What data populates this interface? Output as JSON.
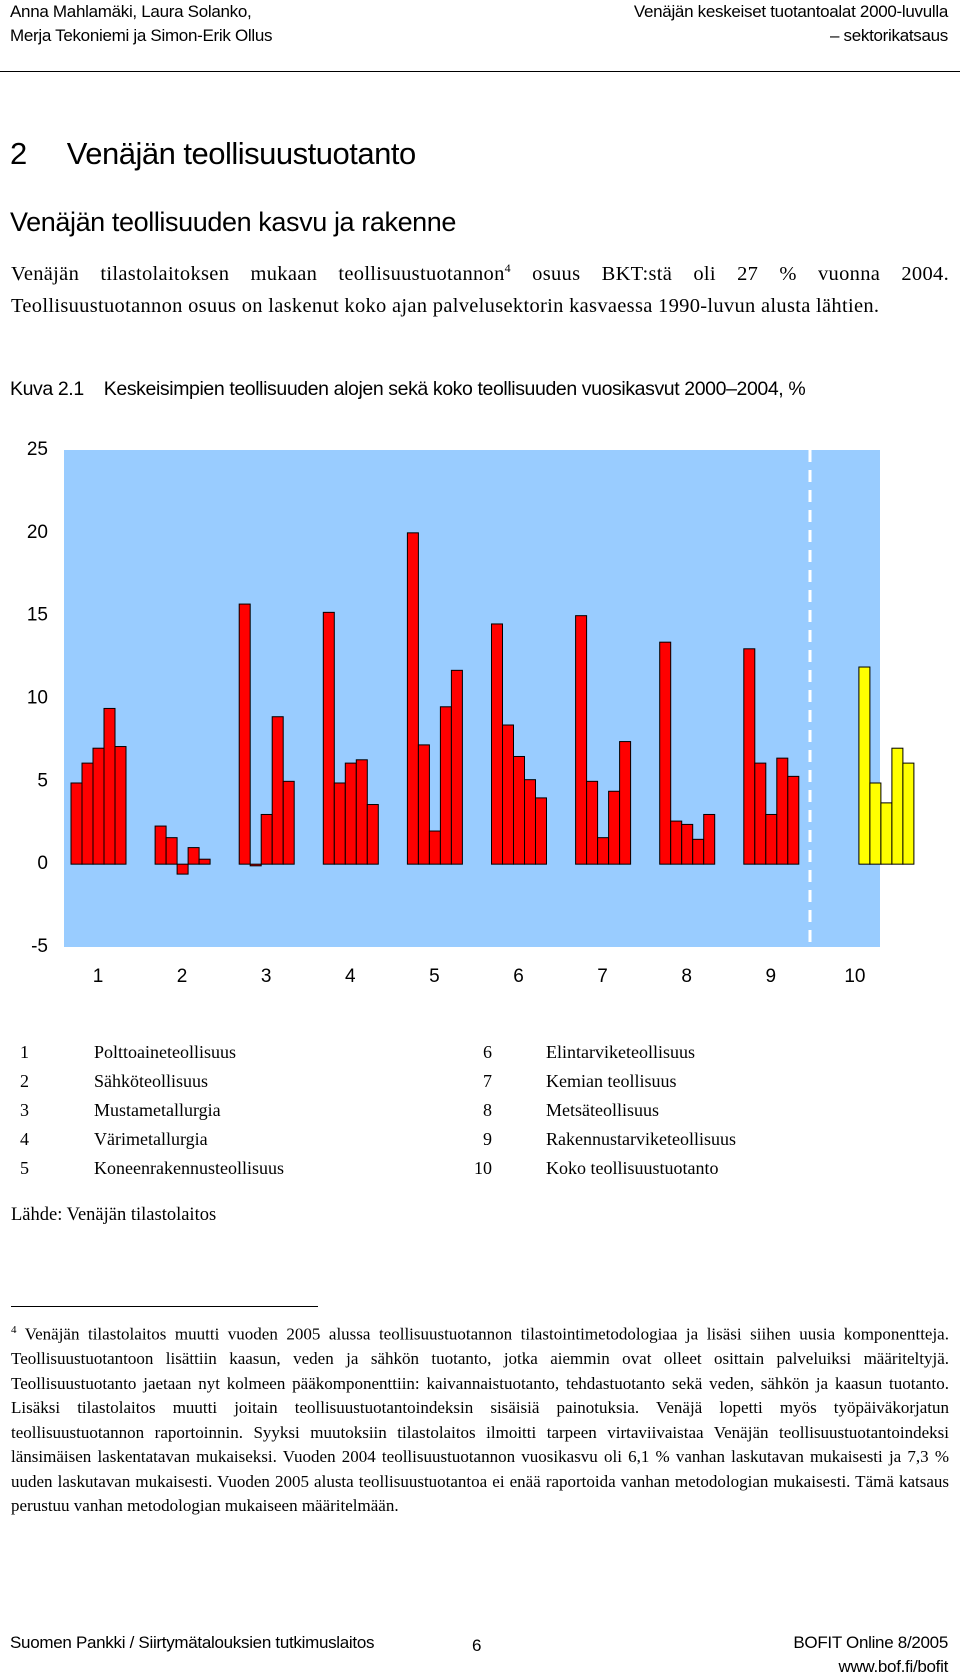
{
  "header": {
    "authors": [
      "Anna Mahlamäki, Laura Solanko,",
      "Merja Tekoniemi ja Simon-Erik Ollus"
    ],
    "title": [
      "Venäjän keskeiset tuotantoalat 2000-luvulla",
      "– sektorikatsaus"
    ]
  },
  "section_heading": {
    "number": "2",
    "title": "Venäjän teollisuustuotanto"
  },
  "subheading": "Venäjän teollisuuden kasvu ja rakenne",
  "paragraph": {
    "before": "Venäjän tilastolaitoksen mukaan teollisuustuotannon",
    "footnote_ref": "4",
    "after": " osuus BKT:stä oli 27 % vuonna 2004. Teollisuustuotannon osuus on laskenut koko ajan palvelusektorin kasvaessa 1990-luvun alusta lähtien."
  },
  "figure_label": "Kuva 2.1",
  "chart_data": {
    "type": "grouped_bar",
    "title": "Keskeisimpien teollisuuden alojen sekä koko teollisuuden vuosikasvut 2000–2004, %",
    "categories": [
      "1",
      "2",
      "3",
      "4",
      "5",
      "6",
      "7",
      "8",
      "9",
      "10"
    ],
    "values": [
      [
        4.9,
        6.1,
        7.0,
        9.4,
        7.1
      ],
      [
        2.3,
        1.6,
        -0.6,
        1.0,
        0.3
      ],
      [
        15.7,
        -0.1,
        3.0,
        8.9,
        5.0
      ],
      [
        15.2,
        4.9,
        6.1,
        6.3,
        3.6
      ],
      [
        20.0,
        7.2,
        2.0,
        9.5,
        11.7
      ],
      [
        14.5,
        8.4,
        6.5,
        5.1,
        4.0
      ],
      [
        15.0,
        5.0,
        1.6,
        4.4,
        7.4
      ],
      [
        13.4,
        2.6,
        2.4,
        1.5,
        3.0
      ],
      [
        13.0,
        6.1,
        3.0,
        6.4,
        5.3
      ],
      [
        11.9,
        4.9,
        3.7,
        7.0,
        6.1
      ]
    ],
    "colors": [
      "#ff0000",
      "#ff0000",
      "#ff0000",
      "#ff0000",
      "#ff0000",
      "#ff0000",
      "#ff0000",
      "#ff0000",
      "#ff0000",
      "#ffff00"
    ],
    "background": "#99ccff",
    "ylim": [
      -5,
      25
    ],
    "yticks": [
      -5,
      0,
      5,
      10,
      15,
      20,
      25
    ]
  },
  "legend_items": [
    {
      "number": "1",
      "label": "Polttoaineteollisuus"
    },
    {
      "number": "2",
      "label": "Sähköteollisuus"
    },
    {
      "number": "3",
      "label": "Mustametallurgia"
    },
    {
      "number": "4",
      "label": "Värimetallurgia"
    },
    {
      "number": "5",
      "label": "Koneenrakennusteollisuus"
    },
    {
      "number": "6",
      "label": "Elintarviketeollisuus"
    },
    {
      "number": "7",
      "label": "Kemian teollisuus"
    },
    {
      "number": "8",
      "label": "Metsäteollisuus"
    },
    {
      "number": "9",
      "label": "Rakennustarviketeollisuus"
    },
    {
      "number": "10",
      "label": "Koko teollisuustuotanto"
    }
  ],
  "source": "Lähde: Venäjän tilastolaitos",
  "footnote": {
    "number": "4",
    "text": "Venäjän tilastolaitos muutti vuoden 2005 alussa teollisuustuotannon tilastointimetodologiaa ja lisäsi siihen uusia komponentteja. Teollisuustuotantoon lisättiin kaasun, veden ja sähkön tuotanto, jotka aiemmin ovat olleet osittain palveluiksi määriteltyjä. Teollisuustuotanto jaetaan nyt kolmeen pääkomponenttiin: kaivannaistuotanto, tehdastuotanto sekä veden, sähkön ja kaasun tuotanto. Lisäksi tilastolaitos muutti joitain teollisuustuotantoindeksin sisäisiä painotuksia. Venäjä lopetti myös työpäiväkorjatun teollisuustuotannon raportoinnin. Syyksi muutoksiin tilastolaitos ilmoitti tarpeen virtaviivaistaa Venäjän teollisuustuotantoindeksi länsimäisen laskentatavan mukaiseksi. Vuoden 2004 teollisuustuotannon vuosikasvu oli 6,1 % vanhan laskutavan mukaisesti ja 7,3 % uuden laskutavan mukaisesti. Vuoden 2005 alusta teollisuustuotantoa ei enää raportoida vanhan metodologian mukaisesti. Tämä katsaus perustuu vanhan metodologian mukaiseen määritelmään."
  },
  "footer": {
    "left": "Suomen Pankki / Siirtymätalouksien tutkimuslaitos",
    "page": "6",
    "right": [
      "BOFIT Online 8/2005",
      "www.bof.fi/bofit"
    ]
  }
}
